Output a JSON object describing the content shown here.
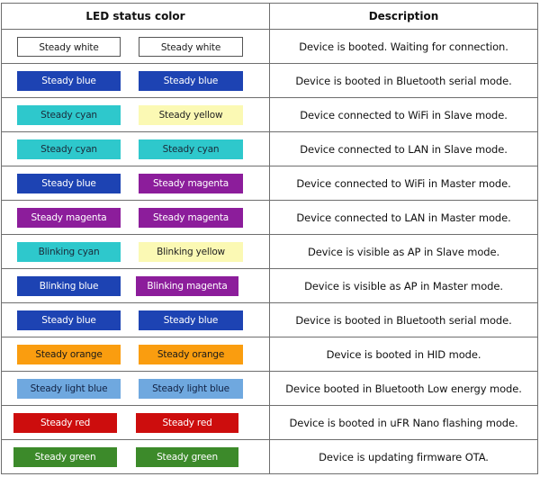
{
  "header": {
    "col1": "LED status color",
    "col2": "Description"
  },
  "palette": {
    "white": {
      "bg": "#ffffff",
      "fg": "#222222",
      "border": "#555555"
    },
    "blue": {
      "bg": "#1d43b3",
      "fg": "#ffffff",
      "border": ""
    },
    "cyan": {
      "bg": "#2ec8cc",
      "fg": "#1a2a3a",
      "border": ""
    },
    "yellow": {
      "bg": "#fbf9b4",
      "fg": "#222222",
      "border": ""
    },
    "magenta": {
      "bg": "#8c1d9b",
      "fg": "#ffffff",
      "border": ""
    },
    "orange": {
      "bg": "#fa9d0f",
      "fg": "#1a1a1a",
      "border": ""
    },
    "light_blue": {
      "bg": "#6fa8df",
      "fg": "#112244",
      "border": ""
    },
    "red": {
      "bg": "#cd0d0d",
      "fg": "#ffffff",
      "border": ""
    },
    "green": {
      "bg": "#3c8a2a",
      "fg": "#ffffff",
      "border": ""
    }
  },
  "rows": [
    {
      "led1": {
        "label": "Steady white",
        "color": "white"
      },
      "led2": {
        "label": "Steady white",
        "color": "white"
      },
      "description": "Device is booted. Waiting for connection."
    },
    {
      "led1": {
        "label": "Steady blue",
        "color": "blue"
      },
      "led2": {
        "label": "Steady blue",
        "color": "blue"
      },
      "description": "Device is booted in Bluetooth serial mode."
    },
    {
      "led1": {
        "label": "Steady cyan",
        "color": "cyan"
      },
      "led2": {
        "label": "Steady yellow",
        "color": "yellow"
      },
      "description": "Device connected to WiFi in Slave mode."
    },
    {
      "led1": {
        "label": "Steady cyan",
        "color": "cyan"
      },
      "led2": {
        "label": "Steady cyan",
        "color": "cyan"
      },
      "description": "Device connected to LAN in Slave mode."
    },
    {
      "led1": {
        "label": "Steady blue",
        "color": "blue"
      },
      "led2": {
        "label": "Steady magenta",
        "color": "magenta"
      },
      "description": "Device connected to WiFi in Master mode."
    },
    {
      "led1": {
        "label": "Steady magenta",
        "color": "magenta"
      },
      "led2": {
        "label": "Steady magenta",
        "color": "magenta"
      },
      "description": "Device connected to LAN in Master mode."
    },
    {
      "led1": {
        "label": "Blinking cyan",
        "color": "cyan"
      },
      "led2": {
        "label": "Blinking yellow",
        "color": "yellow"
      },
      "description": "Device is visible as AP in Slave mode."
    },
    {
      "led1": {
        "label": "Blinking blue",
        "color": "blue"
      },
      "led2": {
        "label": "Blinking magenta",
        "color": "magenta"
      },
      "description": "Device is visible as AP in Master mode."
    },
    {
      "led1": {
        "label": "Steady blue",
        "color": "blue"
      },
      "led2": {
        "label": "Steady blue",
        "color": "blue"
      },
      "description": "Device is booted in Bluetooth serial mode."
    },
    {
      "led1": {
        "label": "Steady orange",
        "color": "orange"
      },
      "led2": {
        "label": "Steady orange",
        "color": "orange"
      },
      "description": "Device is booted in HID mode."
    },
    {
      "led1": {
        "label": "Steady light blue",
        "color": "light_blue"
      },
      "led2": {
        "label": "Steady light blue",
        "color": "light_blue"
      },
      "description": "Device booted in Bluetooth Low energy mode."
    },
    {
      "led1": {
        "label": "Steady red",
        "color": "red"
      },
      "led2": {
        "label": "Steady red",
        "color": "red"
      },
      "description": "Device is booted in uFR Nano flashing mode."
    },
    {
      "led1": {
        "label": "Steady green",
        "color": "green"
      },
      "led2": {
        "label": "Steady green",
        "color": "green"
      },
      "description": "Device is updating firmware OTA."
    }
  ]
}
